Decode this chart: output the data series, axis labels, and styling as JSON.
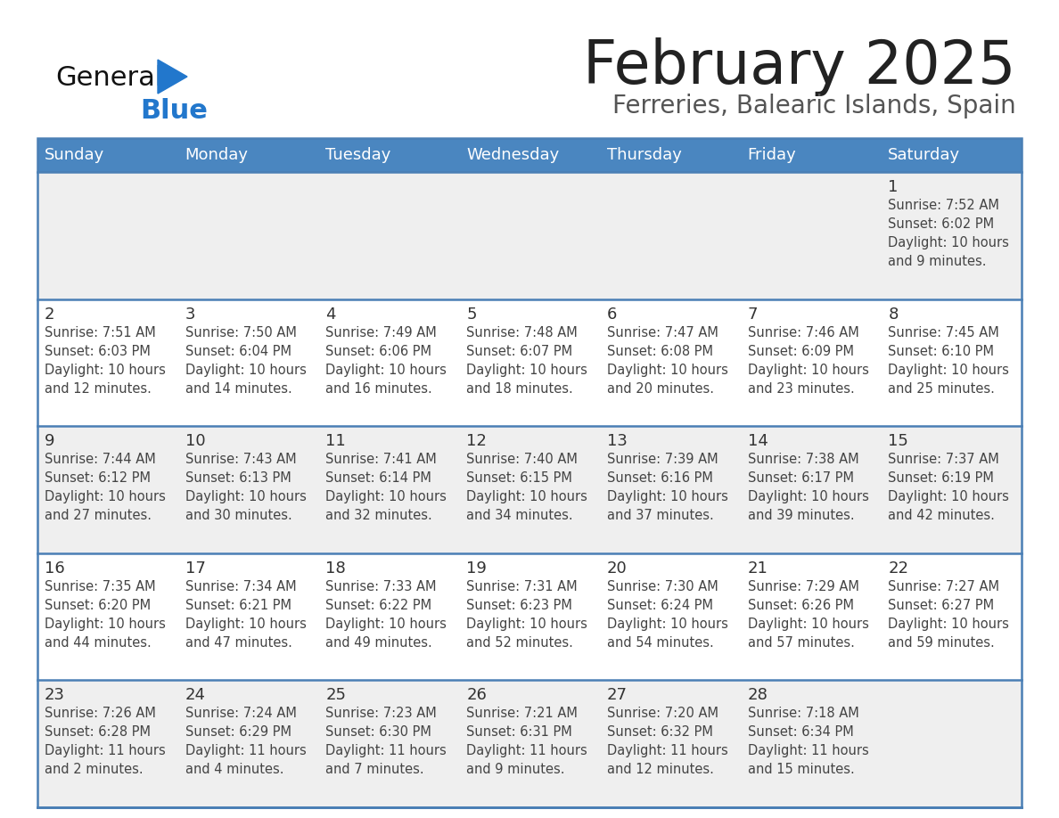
{
  "title": "February 2025",
  "subtitle": "Ferreries, Balearic Islands, Spain",
  "days_of_week": [
    "Sunday",
    "Monday",
    "Tuesday",
    "Wednesday",
    "Thursday",
    "Friday",
    "Saturday"
  ],
  "header_bg": "#4a86c0",
  "header_text_color": "#ffffff",
  "cell_bg_odd": "#efefef",
  "cell_bg_even": "#ffffff",
  "border_color": "#4a7fb5",
  "text_color": "#444444",
  "day_num_color": "#333333",
  "title_color": "#222222",
  "subtitle_color": "#555555",
  "logo_general_color": "#111111",
  "logo_blue_color": "#2277cc",
  "logo_triangle_color": "#2277cc",
  "weeks": [
    [
      {
        "day": null
      },
      {
        "day": null
      },
      {
        "day": null
      },
      {
        "day": null
      },
      {
        "day": null
      },
      {
        "day": null
      },
      {
        "day": 1,
        "sunrise": "7:52 AM",
        "sunset": "6:02 PM",
        "daylight_hours": 10,
        "daylight_minutes": 9
      }
    ],
    [
      {
        "day": 2,
        "sunrise": "7:51 AM",
        "sunset": "6:03 PM",
        "daylight_hours": 10,
        "daylight_minutes": 12
      },
      {
        "day": 3,
        "sunrise": "7:50 AM",
        "sunset": "6:04 PM",
        "daylight_hours": 10,
        "daylight_minutes": 14
      },
      {
        "day": 4,
        "sunrise": "7:49 AM",
        "sunset": "6:06 PM",
        "daylight_hours": 10,
        "daylight_minutes": 16
      },
      {
        "day": 5,
        "sunrise": "7:48 AM",
        "sunset": "6:07 PM",
        "daylight_hours": 10,
        "daylight_minutes": 18
      },
      {
        "day": 6,
        "sunrise": "7:47 AM",
        "sunset": "6:08 PM",
        "daylight_hours": 10,
        "daylight_minutes": 20
      },
      {
        "day": 7,
        "sunrise": "7:46 AM",
        "sunset": "6:09 PM",
        "daylight_hours": 10,
        "daylight_minutes": 23
      },
      {
        "day": 8,
        "sunrise": "7:45 AM",
        "sunset": "6:10 PM",
        "daylight_hours": 10,
        "daylight_minutes": 25
      }
    ],
    [
      {
        "day": 9,
        "sunrise": "7:44 AM",
        "sunset": "6:12 PM",
        "daylight_hours": 10,
        "daylight_minutes": 27
      },
      {
        "day": 10,
        "sunrise": "7:43 AM",
        "sunset": "6:13 PM",
        "daylight_hours": 10,
        "daylight_minutes": 30
      },
      {
        "day": 11,
        "sunrise": "7:41 AM",
        "sunset": "6:14 PM",
        "daylight_hours": 10,
        "daylight_minutes": 32
      },
      {
        "day": 12,
        "sunrise": "7:40 AM",
        "sunset": "6:15 PM",
        "daylight_hours": 10,
        "daylight_minutes": 34
      },
      {
        "day": 13,
        "sunrise": "7:39 AM",
        "sunset": "6:16 PM",
        "daylight_hours": 10,
        "daylight_minutes": 37
      },
      {
        "day": 14,
        "sunrise": "7:38 AM",
        "sunset": "6:17 PM",
        "daylight_hours": 10,
        "daylight_minutes": 39
      },
      {
        "day": 15,
        "sunrise": "7:37 AM",
        "sunset": "6:19 PM",
        "daylight_hours": 10,
        "daylight_minutes": 42
      }
    ],
    [
      {
        "day": 16,
        "sunrise": "7:35 AM",
        "sunset": "6:20 PM",
        "daylight_hours": 10,
        "daylight_minutes": 44
      },
      {
        "day": 17,
        "sunrise": "7:34 AM",
        "sunset": "6:21 PM",
        "daylight_hours": 10,
        "daylight_minutes": 47
      },
      {
        "day": 18,
        "sunrise": "7:33 AM",
        "sunset": "6:22 PM",
        "daylight_hours": 10,
        "daylight_minutes": 49
      },
      {
        "day": 19,
        "sunrise": "7:31 AM",
        "sunset": "6:23 PM",
        "daylight_hours": 10,
        "daylight_minutes": 52
      },
      {
        "day": 20,
        "sunrise": "7:30 AM",
        "sunset": "6:24 PM",
        "daylight_hours": 10,
        "daylight_minutes": 54
      },
      {
        "day": 21,
        "sunrise": "7:29 AM",
        "sunset": "6:26 PM",
        "daylight_hours": 10,
        "daylight_minutes": 57
      },
      {
        "day": 22,
        "sunrise": "7:27 AM",
        "sunset": "6:27 PM",
        "daylight_hours": 10,
        "daylight_minutes": 59
      }
    ],
    [
      {
        "day": 23,
        "sunrise": "7:26 AM",
        "sunset": "6:28 PM",
        "daylight_hours": 11,
        "daylight_minutes": 2
      },
      {
        "day": 24,
        "sunrise": "7:24 AM",
        "sunset": "6:29 PM",
        "daylight_hours": 11,
        "daylight_minutes": 4
      },
      {
        "day": 25,
        "sunrise": "7:23 AM",
        "sunset": "6:30 PM",
        "daylight_hours": 11,
        "daylight_minutes": 7
      },
      {
        "day": 26,
        "sunrise": "7:21 AM",
        "sunset": "6:31 PM",
        "daylight_hours": 11,
        "daylight_minutes": 9
      },
      {
        "day": 27,
        "sunrise": "7:20 AM",
        "sunset": "6:32 PM",
        "daylight_hours": 11,
        "daylight_minutes": 12
      },
      {
        "day": 28,
        "sunrise": "7:18 AM",
        "sunset": "6:34 PM",
        "daylight_hours": 11,
        "daylight_minutes": 15
      },
      {
        "day": null
      }
    ]
  ]
}
